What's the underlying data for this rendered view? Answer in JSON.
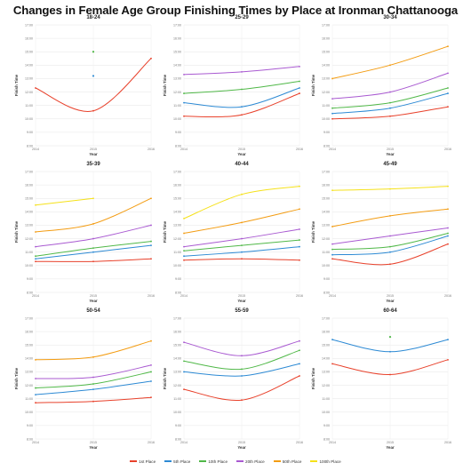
{
  "title": "Changes in Female Age Group Finishing Times by Place at Ironman Chattanooga",
  "axis_labels": {
    "x": "Year",
    "y": "Finish Time"
  },
  "legend": [
    {
      "name": "1st Place",
      "color": "#e8412b"
    },
    {
      "name": "5th Place",
      "color": "#2d8ad4"
    },
    {
      "name": "10th Place",
      "color": "#50b848"
    },
    {
      "name": "20th Place",
      "color": "#a95ad1"
    },
    {
      "name": "50th Place",
      "color": "#f39c12"
    },
    {
      "name": "100th Place",
      "color": "#f5e11a"
    }
  ],
  "chart_data": [
    {
      "type": "line",
      "title": "18-24",
      "x": [
        "2014",
        "2015",
        "2016"
      ],
      "yticks": [
        "8:00",
        "9:00",
        "10:00",
        "11:00",
        "12:00",
        "13:00",
        "14:00",
        "15:00",
        "16:00",
        "17:00"
      ],
      "ylim": [
        8,
        17
      ],
      "series": [
        {
          "name": "1st Place",
          "values": [
            12.3,
            10.6,
            14.5
          ]
        },
        {
          "name": "5th Place",
          "values": [
            null,
            13.2,
            null
          ]
        },
        {
          "name": "10th Place",
          "values": [
            null,
            15.0,
            null
          ]
        }
      ]
    },
    {
      "type": "line",
      "title": "25-29",
      "x": [
        "2014",
        "2015",
        "2016"
      ],
      "yticks": [
        "8:00",
        "9:00",
        "10:00",
        "11:00",
        "12:00",
        "13:00",
        "14:00",
        "15:00",
        "16:00",
        "17:00"
      ],
      "ylim": [
        8,
        17
      ],
      "series": [
        {
          "name": "1st Place",
          "values": [
            10.2,
            10.3,
            11.9
          ]
        },
        {
          "name": "5th Place",
          "values": [
            11.2,
            10.9,
            12.3
          ]
        },
        {
          "name": "10th Place",
          "values": [
            11.9,
            12.2,
            12.8
          ]
        },
        {
          "name": "20th Place",
          "values": [
            13.3,
            13.5,
            13.9
          ]
        }
      ]
    },
    {
      "type": "line",
      "title": "30-34",
      "x": [
        "2014",
        "2015",
        "2016"
      ],
      "yticks": [
        "8:00",
        "9:00",
        "10:00",
        "11:00",
        "12:00",
        "13:00",
        "14:00",
        "15:00",
        "16:00",
        "17:00"
      ],
      "ylim": [
        8,
        17
      ],
      "series": [
        {
          "name": "1st Place",
          "values": [
            10.0,
            10.2,
            10.9
          ]
        },
        {
          "name": "5th Place",
          "values": [
            10.4,
            10.8,
            11.9
          ]
        },
        {
          "name": "10th Place",
          "values": [
            10.8,
            11.2,
            12.3
          ]
        },
        {
          "name": "20th Place",
          "values": [
            11.5,
            12.0,
            13.4
          ]
        },
        {
          "name": "50th Place",
          "values": [
            13.0,
            14.0,
            15.4
          ]
        }
      ]
    },
    {
      "type": "line",
      "title": "35-39",
      "x": [
        "2014",
        "2015",
        "2016"
      ],
      "yticks": [
        "8:00",
        "9:00",
        "10:00",
        "11:00",
        "12:00",
        "13:00",
        "14:00",
        "15:00",
        "16:00",
        "17:00"
      ],
      "ylim": [
        8,
        17
      ],
      "series": [
        {
          "name": "1st Place",
          "values": [
            10.3,
            10.3,
            10.5
          ]
        },
        {
          "name": "5th Place",
          "values": [
            10.5,
            11.0,
            11.5
          ]
        },
        {
          "name": "10th Place",
          "values": [
            10.7,
            11.3,
            11.8
          ]
        },
        {
          "name": "20th Place",
          "values": [
            11.4,
            12.0,
            13.0
          ]
        },
        {
          "name": "50th Place",
          "values": [
            12.5,
            13.1,
            15.0
          ]
        },
        {
          "name": "100th Place",
          "values": [
            14.5,
            15.0,
            null
          ]
        }
      ]
    },
    {
      "type": "line",
      "title": "40-44",
      "x": [
        "2014",
        "2015",
        "2016"
      ],
      "yticks": [
        "8:00",
        "9:00",
        "10:00",
        "11:00",
        "12:00",
        "13:00",
        "14:00",
        "15:00",
        "16:00",
        "17:00"
      ],
      "ylim": [
        8,
        17
      ],
      "series": [
        {
          "name": "1st Place",
          "values": [
            10.4,
            10.5,
            10.4
          ]
        },
        {
          "name": "5th Place",
          "values": [
            10.7,
            11.0,
            11.4
          ]
        },
        {
          "name": "10th Place",
          "values": [
            11.1,
            11.5,
            11.9
          ]
        },
        {
          "name": "20th Place",
          "values": [
            11.4,
            12.0,
            12.7
          ]
        },
        {
          "name": "50th Place",
          "values": [
            12.4,
            13.2,
            14.2
          ]
        },
        {
          "name": "100th Place",
          "values": [
            13.5,
            15.3,
            15.9
          ]
        }
      ]
    },
    {
      "type": "line",
      "title": "45-49",
      "x": [
        "2014",
        "2015",
        "2016"
      ],
      "yticks": [
        "8:00",
        "9:00",
        "10:00",
        "11:00",
        "12:00",
        "13:00",
        "14:00",
        "15:00",
        "16:00",
        "17:00"
      ],
      "ylim": [
        8,
        17
      ],
      "series": [
        {
          "name": "1st Place",
          "values": [
            10.5,
            10.1,
            11.6
          ]
        },
        {
          "name": "5th Place",
          "values": [
            10.8,
            11.0,
            12.2
          ]
        },
        {
          "name": "10th Place",
          "values": [
            11.2,
            11.4,
            12.4
          ]
        },
        {
          "name": "20th Place",
          "values": [
            11.6,
            12.2,
            12.8
          ]
        },
        {
          "name": "50th Place",
          "values": [
            12.9,
            13.7,
            14.2
          ]
        },
        {
          "name": "100th Place",
          "values": [
            15.6,
            15.7,
            15.9
          ]
        }
      ]
    },
    {
      "type": "line",
      "title": "50-54",
      "x": [
        "2014",
        "2015",
        "2016"
      ],
      "yticks": [
        "8:00",
        "9:00",
        "10:00",
        "11:00",
        "12:00",
        "13:00",
        "14:00",
        "15:00",
        "16:00",
        "17:00"
      ],
      "ylim": [
        8,
        17
      ],
      "series": [
        {
          "name": "1st Place",
          "values": [
            10.7,
            10.8,
            11.1
          ]
        },
        {
          "name": "5th Place",
          "values": [
            11.3,
            11.7,
            12.3
          ]
        },
        {
          "name": "10th Place",
          "values": [
            11.8,
            12.1,
            13.0
          ]
        },
        {
          "name": "20th Place",
          "values": [
            12.5,
            12.6,
            13.5
          ]
        },
        {
          "name": "50th Place",
          "values": [
            13.9,
            14.1,
            15.3
          ]
        }
      ]
    },
    {
      "type": "line",
      "title": "55-59",
      "x": [
        "2014",
        "2015",
        "2016"
      ],
      "yticks": [
        "8:00",
        "9:00",
        "10:00",
        "11:00",
        "12:00",
        "13:00",
        "14:00",
        "15:00",
        "16:00",
        "17:00"
      ],
      "ylim": [
        8,
        17
      ],
      "series": [
        {
          "name": "1st Place",
          "values": [
            11.7,
            10.9,
            12.7
          ]
        },
        {
          "name": "5th Place",
          "values": [
            13.0,
            12.7,
            13.6
          ]
        },
        {
          "name": "10th Place",
          "values": [
            13.8,
            13.2,
            14.6
          ]
        },
        {
          "name": "20th Place",
          "values": [
            15.2,
            14.2,
            15.3
          ]
        }
      ]
    },
    {
      "type": "line",
      "title": "60-64",
      "x": [
        "2014",
        "2015",
        "2016"
      ],
      "yticks": [
        "8:00",
        "9:00",
        "10:00",
        "11:00",
        "12:00",
        "13:00",
        "14:00",
        "15:00",
        "16:00",
        "17:00"
      ],
      "ylim": [
        8,
        17
      ],
      "series": [
        {
          "name": "1st Place",
          "values": [
            13.6,
            12.8,
            13.9
          ]
        },
        {
          "name": "5th Place",
          "values": [
            15.4,
            14.5,
            15.4
          ]
        },
        {
          "name": "10th Place",
          "values": [
            null,
            15.6,
            null
          ]
        }
      ]
    }
  ]
}
